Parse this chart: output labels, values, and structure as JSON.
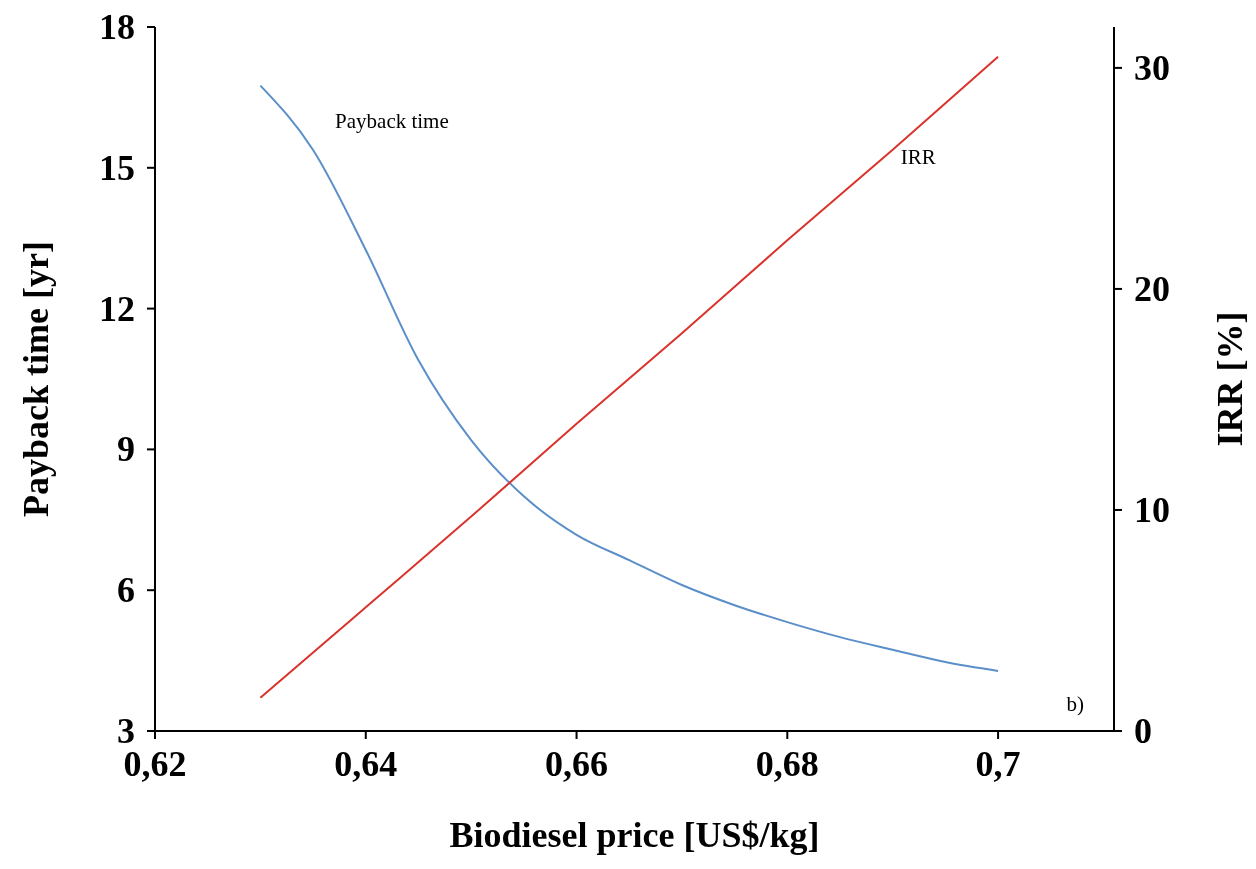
{
  "chart_data": {
    "type": "line",
    "xlabel": "Biodiesel price [US$/kg]",
    "ylabel": "Payback time [yr]",
    "y2label": "IRR [%]",
    "xlim": [
      0.62,
      0.711
    ],
    "xticks": [
      {
        "value": 0.62,
        "label": "0,62"
      },
      {
        "value": 0.64,
        "label": "0,64"
      },
      {
        "value": 0.66,
        "label": "0,66"
      },
      {
        "value": 0.68,
        "label": "0,68"
      },
      {
        "value": 0.7,
        "label": "0,7"
      }
    ],
    "ylim": [
      3,
      18
    ],
    "yticks": [
      3,
      6,
      9,
      12,
      15,
      18
    ],
    "y2lim": [
      0,
      31.85
    ],
    "y2ticks": [
      0,
      10,
      20,
      30
    ],
    "grid": false,
    "marker": "none",
    "line_style": "solid",
    "annotations": [
      "b)"
    ],
    "series": [
      {
        "name": "Payback time",
        "color": "#5b8fc9",
        "x": [
          0.63,
          0.635,
          0.64,
          0.645,
          0.65,
          0.655,
          0.66,
          0.665,
          0.67,
          0.675,
          0.68,
          0.685,
          0.69,
          0.695,
          0.7
        ],
        "values": [
          16.75,
          15.38,
          13.25,
          10.9,
          9.2,
          8.0,
          7.18,
          6.64,
          6.11,
          5.68,
          5.32,
          5.0,
          4.73,
          4.47,
          4.28
        ]
      },
      {
        "name": "IRR",
        "color": "#d9332b",
        "axis": "y2",
        "x": [
          0.63,
          0.64,
          0.65,
          0.66,
          0.67,
          0.68,
          0.69,
          0.7
        ],
        "values": [
          1.5,
          5.6,
          9.7,
          13.9,
          18.0,
          22.2,
          26.3,
          30.5
        ]
      }
    ]
  }
}
